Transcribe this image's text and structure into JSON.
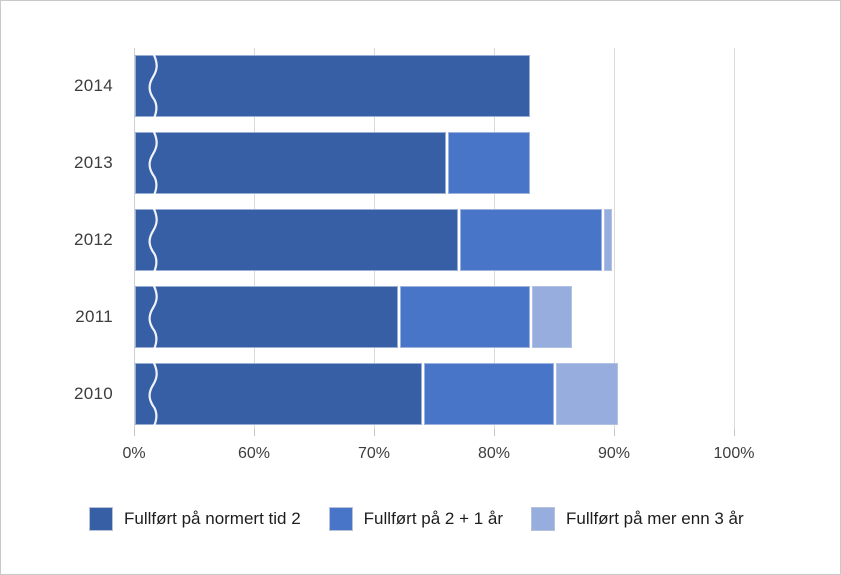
{
  "frame": {
    "background_color": "#ffffff",
    "border_color": "#c7c9cb"
  },
  "chart_data": {
    "type": "bar",
    "orientation": "horizontal",
    "stacked": true,
    "title": "",
    "categories": [
      "2014",
      "2013",
      "2012",
      "2011",
      "2010"
    ],
    "series": [
      {
        "name": "Fullført på normert tid 2",
        "color": "#375FA5",
        "values": [
          83,
          76,
          77,
          72,
          74
        ]
      },
      {
        "name": "Fullført på 2 + 1 år",
        "color": "#4875C8",
        "values": [
          0,
          7,
          12,
          11,
          11
        ]
      },
      {
        "name": "Fullført på mer enn 3 år",
        "color": "#96ADDD",
        "values": [
          0,
          0,
          0.8,
          3.5,
          5.3
        ]
      }
    ],
    "x_axis": {
      "unit": "percent",
      "tick_labels": [
        "0%",
        "60%",
        "70%",
        "80%",
        "90%",
        "100%"
      ],
      "tick_values": [
        0,
        60,
        70,
        80,
        90,
        100
      ],
      "axis_break": {
        "compressed_range": [
          0,
          60
        ],
        "indicator": "white wavy line near bar start"
      }
    },
    "y_axis": {
      "tick_labels": [
        "2014",
        "2013",
        "2012",
        "2011",
        "2010"
      ]
    },
    "grid": true,
    "legend_position": "bottom",
    "gridline_color": "#dadada",
    "axis_line_color": "#cfcfcf",
    "tick_color": "#c6c6c6",
    "label_color": "#3d3d3d",
    "legend_text_color": "#1d1d1d"
  }
}
